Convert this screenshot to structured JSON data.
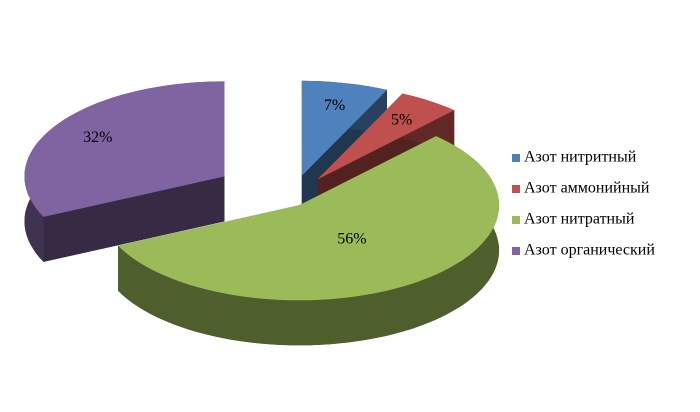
{
  "chart_data": {
    "type": "pie",
    "categories": [
      "Азот нитритный",
      "Азот аммонийный",
      "Азот нитратный",
      "Азот органический"
    ],
    "values": [
      7,
      5,
      56,
      32
    ],
    "value_labels": [
      "7%",
      "5%",
      "56%",
      "32%"
    ],
    "colors": [
      "#4f81bd",
      "#c0504d",
      "#9bbb59",
      "#8064a2"
    ],
    "legend": "right"
  }
}
